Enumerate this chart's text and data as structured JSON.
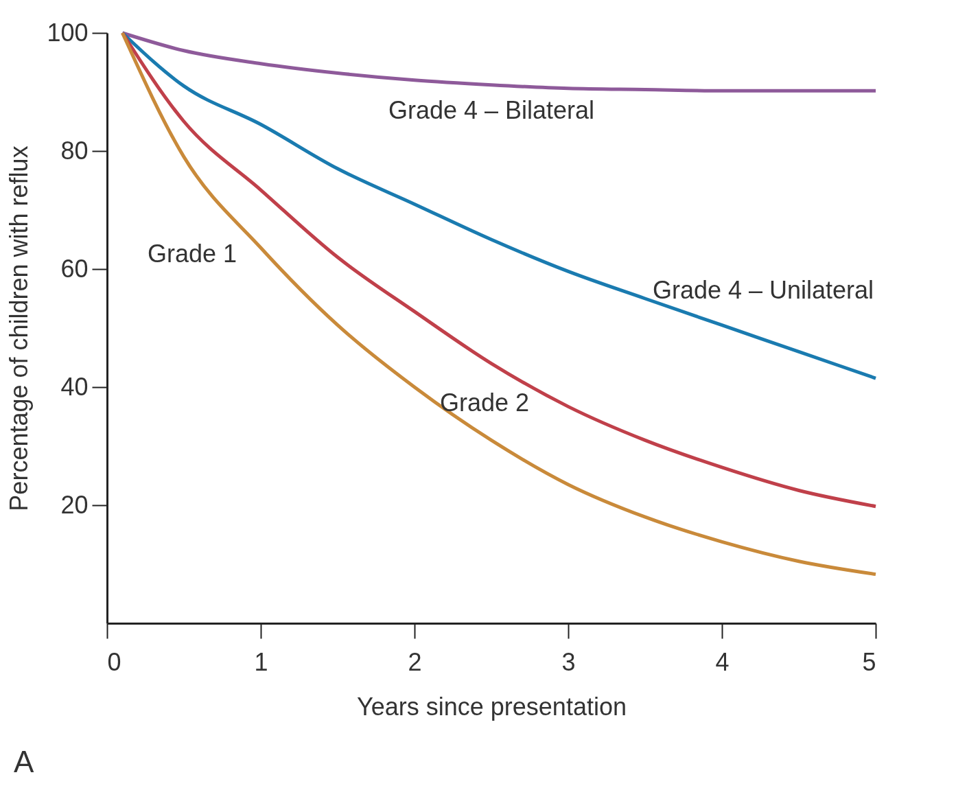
{
  "chart_data": {
    "type": "line",
    "xlabel": "Years since presentation",
    "ylabel": "Percentage of children with reflux",
    "xlim": [
      0,
      5
    ],
    "xticks": [
      0,
      1,
      2,
      3,
      4,
      5
    ],
    "ylim": [
      0,
      100
    ],
    "yticks": [
      20,
      40,
      60,
      80,
      100
    ],
    "grid": false,
    "legend": false,
    "marker": "none",
    "line_style": "solid",
    "annotations": [
      "A"
    ],
    "x": [
      0.1,
      0.5,
      1,
      1.5,
      2,
      2.5,
      3,
      3.5,
      4,
      4.5,
      5
    ],
    "series": [
      {
        "name": "Grade 4 – Bilateral",
        "color": "#8e5a9a",
        "values": [
          100,
          97,
          94.8,
          93.2,
          92,
          91.2,
          90.6,
          90.4,
          90.2,
          90.2,
          90.2
        ]
      },
      {
        "name": "Grade 4 – Unilateral",
        "color": "#1a7bb0",
        "values": [
          100,
          91,
          84.5,
          77,
          71,
          65,
          59.6,
          55,
          50.5,
          46,
          41.5
        ]
      },
      {
        "name": "Grade 2",
        "color": "#c0404a",
        "values": [
          100,
          85,
          73.4,
          62,
          52.8,
          44,
          36.7,
          31,
          26.4,
          22.5,
          19.8
        ]
      },
      {
        "name": "Grade 1",
        "color": "#c98a3a",
        "values": [
          100,
          79,
          63.6,
          50.5,
          40,
          31,
          23.5,
          18,
          13.8,
          10.5,
          8.3
        ]
      }
    ]
  }
}
